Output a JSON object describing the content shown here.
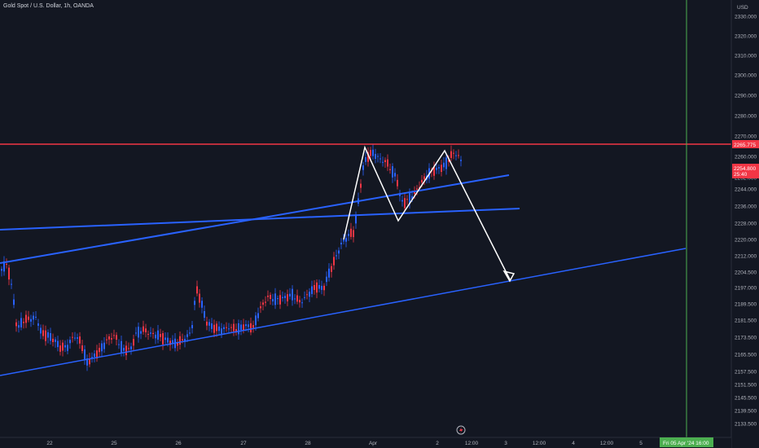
{
  "header": {
    "title": "Gold Spot / U.S. Dollar, 1h, OANDA"
  },
  "price_axis": {
    "currency": "USD",
    "ticks": [
      "2330.000",
      "2320.000",
      "2310.000",
      "2300.000",
      "2290.000",
      "2280.000",
      "2270.000",
      "2260.000",
      "2252.000",
      "2244.000",
      "2236.000",
      "2228.000",
      "2220.000",
      "2212.000",
      "2204.500",
      "2197.000",
      "2189.500",
      "2181.500",
      "2173.500",
      "2165.500",
      "2157.500",
      "2151.500",
      "2145.500",
      "2139.500",
      "2133.500"
    ]
  },
  "time_axis": {
    "ticks": [
      "22",
      "25",
      "26",
      "27",
      "28",
      "Apr",
      "2",
      "12:00",
      "3",
      "12:00",
      "4",
      "12:00",
      "5"
    ],
    "crosshair_label": "Fri 05 Apr '24   16:00"
  },
  "resistance_line": {
    "label": "2265.775",
    "color": "#f23645"
  },
  "current_price": {
    "price": "2254.800",
    "countdown": "25:40",
    "color": "#f23645"
  },
  "colors": {
    "up_candle": "#2962ff",
    "down_candle": "#f23645",
    "channel_line": "#2962ff",
    "pattern_line": "#ffffff",
    "crosshair": "#4caf50"
  },
  "icons": {
    "replay": "lightning-bolt-icon"
  }
}
